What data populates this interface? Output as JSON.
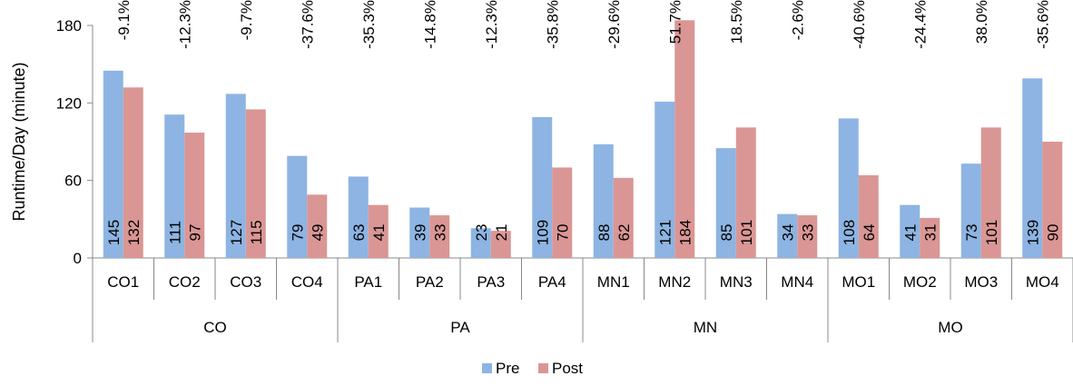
{
  "chart_data": {
    "type": "bar",
    "ylabel": "Runtime/Day (minute)",
    "ylim": [
      0,
      180
    ],
    "yticks": [
      0,
      60,
      120,
      180
    ],
    "grid": false,
    "legend_position": "bottom",
    "groups": [
      {
        "name": "CO",
        "categories": [
          "CO1",
          "CO2",
          "CO3",
          "CO4"
        ]
      },
      {
        "name": "PA",
        "categories": [
          "PA1",
          "PA2",
          "PA3",
          "PA4"
        ]
      },
      {
        "name": "MN",
        "categories": [
          "MN1",
          "MN2",
          "MN3",
          "MN4"
        ]
      },
      {
        "name": "MO",
        "categories": [
          "MO1",
          "MO2",
          "MO3",
          "MO4"
        ]
      }
    ],
    "categories": [
      "CO1",
      "CO2",
      "CO3",
      "CO4",
      "PA1",
      "PA2",
      "PA3",
      "PA4",
      "MN1",
      "MN2",
      "MN3",
      "MN4",
      "MO1",
      "MO2",
      "MO3",
      "MO4"
    ],
    "series": [
      {
        "name": "Pre",
        "color": "#8db4e2",
        "values": [
          145,
          111,
          127,
          79,
          63,
          39,
          23,
          109,
          88,
          121,
          85,
          34,
          108,
          41,
          73,
          139
        ]
      },
      {
        "name": "Post",
        "color": "#da9694",
        "values": [
          132,
          97,
          115,
          49,
          41,
          33,
          21,
          70,
          62,
          184,
          101,
          33,
          64,
          31,
          101,
          90
        ]
      }
    ],
    "change_labels": [
      "-9.1%",
      "-12.3%",
      "-9.7%",
      "-37.6%",
      "-35.3%",
      "-14.8%",
      "-12.3%",
      "-35.8%",
      "-29.6%",
      "51.7%",
      "18.5%",
      "-2.6%",
      "-40.6%",
      "-24.4%",
      "38.0%",
      "-35.6%"
    ]
  }
}
